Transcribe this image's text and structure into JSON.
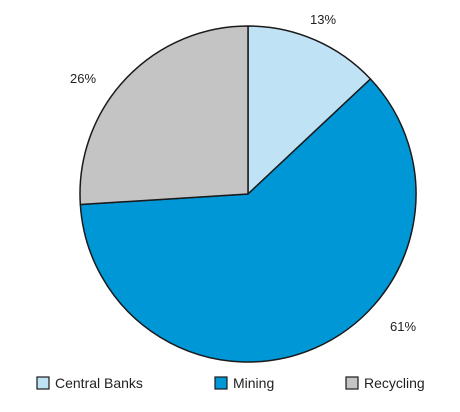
{
  "chart_data": {
    "type": "pie",
    "slices": [
      {
        "label": "Central Banks",
        "value": 13,
        "display": "13%",
        "color": "#bfe2f4"
      },
      {
        "label": "Mining",
        "value": 61,
        "display": "61%",
        "color": "#0097d7"
      },
      {
        "label": "Recycling",
        "value": 26,
        "display": "26%",
        "color": "#c4c4c4"
      }
    ],
    "start_angle_deg": 0,
    "direction": "clockwise",
    "legend_position": "bottom",
    "border_color": "#1a1a1a"
  }
}
